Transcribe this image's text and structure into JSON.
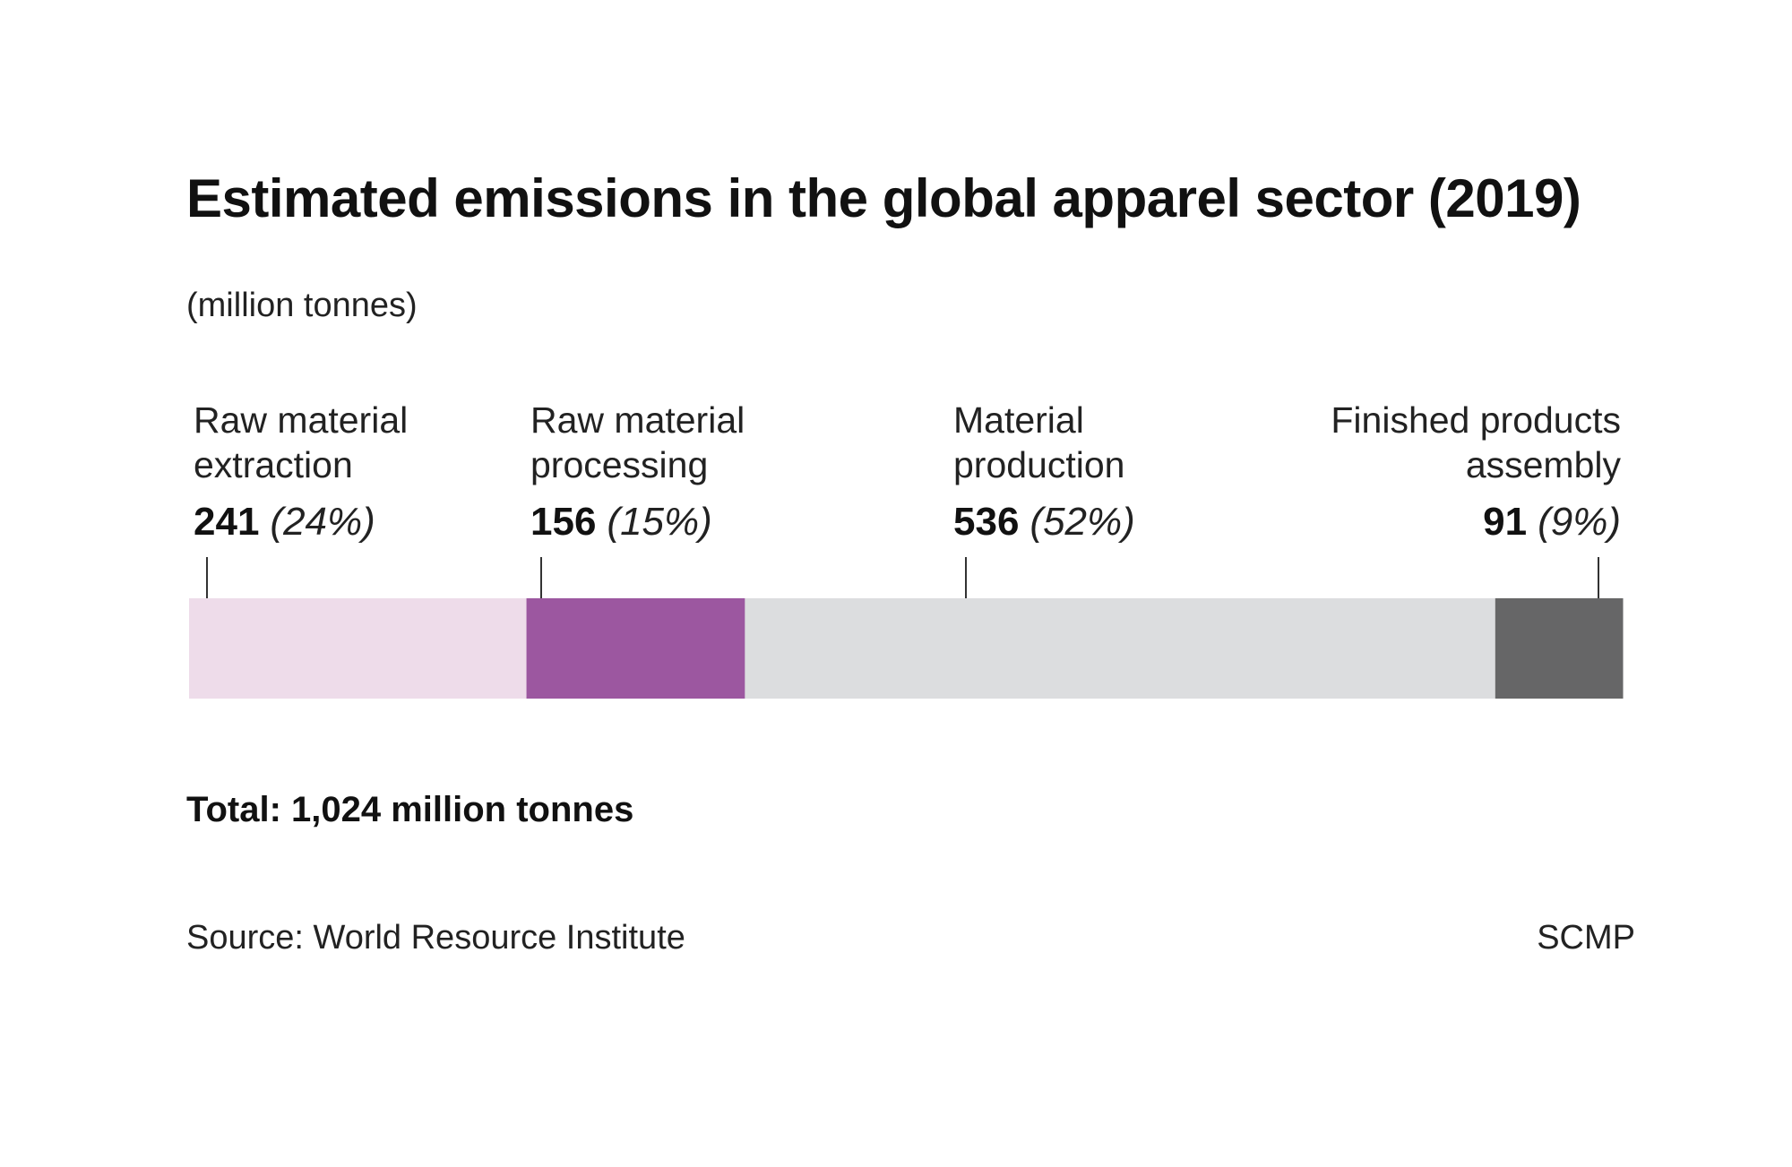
{
  "header": {
    "title": "Estimated emissions in the global apparel sector (2019)",
    "subtitle": "(million tonnes)"
  },
  "chart_data": {
    "type": "bar",
    "orientation": "horizontal-stacked",
    "title": "Estimated emissions in the global apparel sector (2019)",
    "subtitle": "(million tonnes)",
    "unit": "million tonnes",
    "categories": [
      [
        "Raw material",
        "extraction"
      ],
      [
        "Raw material",
        "processing"
      ],
      [
        "Material",
        "production"
      ],
      [
        "Finished products",
        "assembly"
      ]
    ],
    "values": [
      241,
      156,
      536,
      91
    ],
    "value_labels": [
      "241",
      "156",
      "536",
      "91"
    ],
    "percent_labels": [
      "(24%)",
      "(15%)",
      "(52%)",
      "(9%)"
    ],
    "colors": [
      "#eedcea",
      "#9c57a0",
      "#dcdddf",
      "#666667"
    ],
    "total": 1024,
    "grid": false,
    "legend": "none"
  },
  "footer": {
    "total": "Total: 1,024 million tonnes",
    "source": "Source: World Resource Institute",
    "credit": "SCMP"
  }
}
